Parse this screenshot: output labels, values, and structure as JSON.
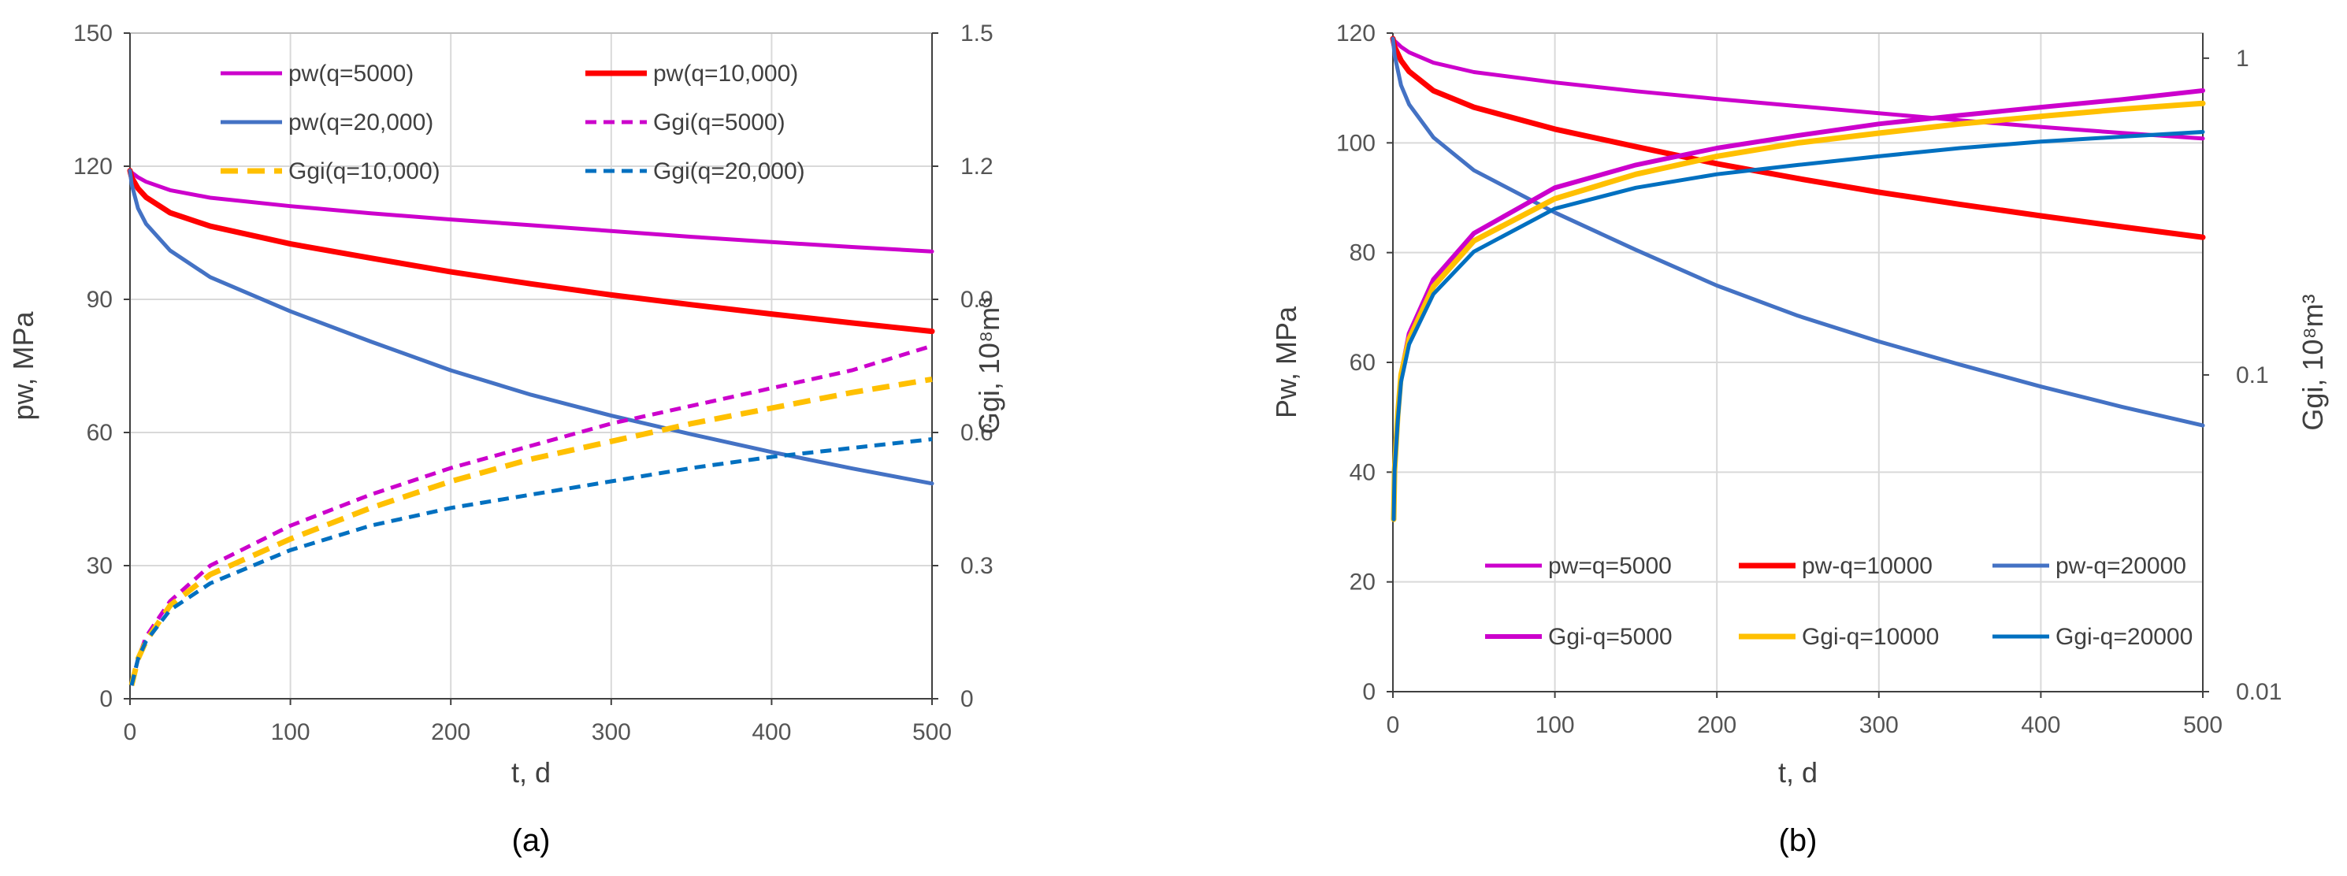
{
  "colors": {
    "magenta": "#CC00CC",
    "red": "#FF0000",
    "blue": "#4472C4",
    "orange": "#FFC000",
    "darkblue": "#0070C0"
  },
  "chart_data": [
    {
      "type": "line",
      "panel_label": "(a)",
      "xlabel": "t, d",
      "ylabel": "pw, MPa",
      "y2label": "Ggi, 10⁸m³",
      "xlim": [
        0,
        500
      ],
      "xticks": [
        "0",
        "100",
        "200",
        "300",
        "400",
        "500"
      ],
      "ylim": [
        0,
        150
      ],
      "yticks": [
        "0",
        "30",
        "60",
        "90",
        "120",
        "150"
      ],
      "y2lim": [
        0,
        1.5
      ],
      "y2ticks": [
        "0",
        "0.3",
        "0.6",
        "0.9",
        "1.2",
        "1.5"
      ],
      "legend_position": "top",
      "series": [
        {
          "name": "pw(q=5000)",
          "axis": "left",
          "color": "magenta",
          "style": "solid",
          "width": 5,
          "x": [
            0,
            1,
            5,
            10,
            25,
            50,
            100,
            150,
            200,
            250,
            300,
            350,
            400,
            450,
            500
          ],
          "y": [
            119,
            118.6,
            117.5,
            116.5,
            114.6,
            112.9,
            111,
            109.4,
            108,
            106.7,
            105.4,
            104.1,
            102.9,
            101.8,
            100.8
          ]
        },
        {
          "name": "pw(q=10,000)",
          "axis": "left",
          "color": "red",
          "style": "solid",
          "width": 7,
          "x": [
            0,
            1,
            5,
            10,
            25,
            50,
            100,
            150,
            200,
            250,
            300,
            350,
            400,
            450,
            500
          ],
          "y": [
            119,
            117.5,
            115,
            113,
            109.5,
            106.5,
            102.5,
            99.3,
            96.2,
            93.5,
            91,
            88.8,
            86.7,
            84.7,
            82.8
          ]
        },
        {
          "name": "pw(q=20,000)",
          "axis": "left",
          "color": "blue",
          "style": "solid",
          "width": 5,
          "x": [
            0,
            1,
            5,
            10,
            25,
            50,
            100,
            150,
            200,
            250,
            300,
            350,
            400,
            450,
            500
          ],
          "y": [
            119,
            116,
            110.5,
            107,
            101,
            95,
            87.3,
            80.5,
            74,
            68.5,
            63.8,
            59.6,
            55.6,
            51.9,
            48.5
          ]
        },
        {
          "name": "Ggi(q=5000)",
          "axis": "right",
          "color": "magenta",
          "style": "dash",
          "width": 5,
          "x": [
            1,
            5,
            10,
            25,
            50,
            100,
            150,
            200,
            250,
            300,
            350,
            400,
            450,
            500
          ],
          "y": [
            0.03,
            0.09,
            0.14,
            0.22,
            0.3,
            0.39,
            0.46,
            0.52,
            0.57,
            0.62,
            0.66,
            0.7,
            0.74,
            0.795
          ]
        },
        {
          "name": "Ggi(q=10,000)",
          "axis": "right",
          "color": "orange",
          "style": "dash",
          "width": 7,
          "x": [
            1,
            5,
            10,
            25,
            50,
            100,
            150,
            200,
            250,
            300,
            350,
            400,
            450,
            500
          ],
          "y": [
            0.03,
            0.09,
            0.13,
            0.21,
            0.28,
            0.36,
            0.43,
            0.49,
            0.54,
            0.58,
            0.62,
            0.655,
            0.69,
            0.72
          ]
        },
        {
          "name": "Ggi(q=20,000)",
          "axis": "right",
          "color": "darkblue",
          "style": "dash",
          "width": 5,
          "x": [
            1,
            5,
            10,
            25,
            50,
            100,
            150,
            200,
            250,
            300,
            350,
            400,
            450,
            500
          ],
          "y": [
            0.03,
            0.09,
            0.13,
            0.2,
            0.26,
            0.335,
            0.39,
            0.43,
            0.46,
            0.49,
            0.52,
            0.545,
            0.565,
            0.585
          ]
        }
      ]
    },
    {
      "type": "line",
      "panel_label": "(b)",
      "xlabel": "t, d",
      "ylabel": "Pw, MPa",
      "y2label": "Ggi, 10⁸m³",
      "y2scale": "log",
      "xlim": [
        0,
        500
      ],
      "xticks": [
        "0",
        "100",
        "200",
        "300",
        "400",
        "500"
      ],
      "ylim": [
        0,
        120
      ],
      "yticks": [
        "0",
        "20",
        "40",
        "60",
        "80",
        "100",
        "120"
      ],
      "y2lim": [
        0.01,
        1.2
      ],
      "y2ticks": [
        "0.01",
        "0.1",
        "1"
      ],
      "legend_position": "bottom",
      "series": [
        {
          "name": "pw=q=5000",
          "axis": "left",
          "color": "magenta",
          "style": "solid",
          "width": 5,
          "x": [
            0,
            1,
            5,
            10,
            25,
            50,
            100,
            150,
            200,
            250,
            300,
            350,
            400,
            450,
            500
          ],
          "y": [
            119,
            118.6,
            117.5,
            116.5,
            114.6,
            112.9,
            111,
            109.4,
            108,
            106.7,
            105.4,
            104.1,
            102.9,
            101.8,
            100.8
          ]
        },
        {
          "name": "pw-q=10000",
          "axis": "left",
          "color": "red",
          "style": "solid",
          "width": 7,
          "x": [
            0,
            1,
            5,
            10,
            25,
            50,
            100,
            150,
            200,
            250,
            300,
            350,
            400,
            450,
            500
          ],
          "y": [
            119,
            117.5,
            115,
            113,
            109.5,
            106.5,
            102.5,
            99.3,
            96.2,
            93.5,
            91,
            88.8,
            86.7,
            84.7,
            82.8
          ]
        },
        {
          "name": "pw-q=20000",
          "axis": "left",
          "color": "blue",
          "style": "solid",
          "width": 5,
          "x": [
            0,
            1,
            5,
            10,
            25,
            50,
            100,
            150,
            200,
            250,
            300,
            350,
            400,
            450,
            500
          ],
          "y": [
            119,
            116,
            110.5,
            107,
            101,
            95,
            87.3,
            80.5,
            74,
            68.5,
            63.8,
            59.6,
            55.6,
            51.9,
            48.5
          ]
        },
        {
          "name": "Ggi-q=5000",
          "axis": "right",
          "color": "magenta",
          "style": "solid",
          "width": 6,
          "x": [
            0.5,
            1,
            3,
            5,
            10,
            25,
            50,
            100,
            150,
            200,
            250,
            300,
            350,
            400,
            450,
            500
          ],
          "y": [
            0.035,
            0.05,
            0.075,
            0.1,
            0.135,
            0.2,
            0.28,
            0.39,
            0.46,
            0.52,
            0.57,
            0.62,
            0.66,
            0.7,
            0.74,
            0.79
          ]
        },
        {
          "name": "Ggi-q=10000",
          "axis": "right",
          "color": "orange",
          "style": "solid",
          "width": 7,
          "x": [
            0.5,
            1,
            3,
            5,
            10,
            25,
            50,
            100,
            150,
            200,
            250,
            300,
            350,
            400,
            450,
            500
          ],
          "y": [
            0.035,
            0.05,
            0.075,
            0.1,
            0.13,
            0.19,
            0.265,
            0.36,
            0.43,
            0.49,
            0.54,
            0.58,
            0.62,
            0.655,
            0.69,
            0.72
          ]
        },
        {
          "name": "Ggi-q=20000",
          "axis": "right",
          "color": "darkblue",
          "style": "solid",
          "width": 5,
          "x": [
            0.5,
            1,
            3,
            5,
            10,
            25,
            50,
            100,
            150,
            200,
            250,
            300,
            350,
            400,
            450,
            500
          ],
          "y": [
            0.035,
            0.05,
            0.072,
            0.095,
            0.125,
            0.18,
            0.245,
            0.335,
            0.39,
            0.43,
            0.46,
            0.49,
            0.52,
            0.545,
            0.565,
            0.585
          ]
        }
      ]
    }
  ]
}
